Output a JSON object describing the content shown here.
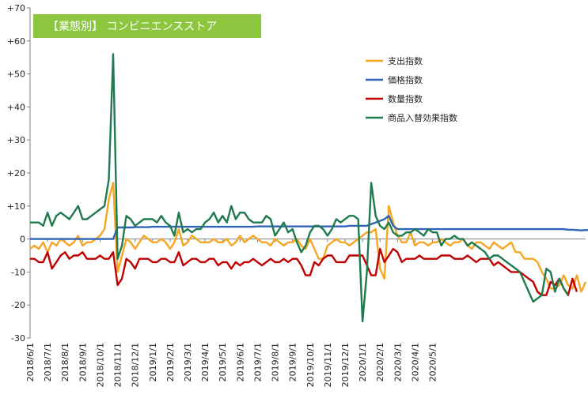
{
  "chart_data": {
    "type": "line",
    "title": "【業態別】 コンビニエンスストア",
    "title_bg": "#8cc63f",
    "ylim": [
      -30,
      70
    ],
    "yticks": [
      "-30",
      "-20",
      "-10",
      "0",
      "+10",
      "+20",
      "+30",
      "+40",
      "+50",
      "+60",
      "+70"
    ],
    "ytick_values": [
      -30,
      -20,
      -10,
      0,
      10,
      20,
      30,
      40,
      50,
      60,
      70
    ],
    "xtick_labels": [
      "2018/6/1",
      "2018/7/1",
      "2018/8/1",
      "2018/9/1",
      "2018/10/1",
      "2018/11/1",
      "2018/12/1",
      "2019/1/1",
      "2019/2/1",
      "2019/3/1",
      "2019/4/1",
      "2019/5/1",
      "2019/6/1",
      "2019/7/1",
      "2019/8/1",
      "2019/9/1",
      "2019/10/1",
      "2019/11/1",
      "2019/12/1",
      "2020/1/1",
      "2020/2/1",
      "2020/3/1",
      "2020/4/1",
      "2020/5/1"
    ],
    "grid": false,
    "legend": "top-right",
    "points_per_month": 4,
    "series": [
      {
        "name": "支出指数",
        "color": "#f5a623",
        "values": [
          -3,
          -2,
          -3,
          -1,
          -4,
          -1,
          -2,
          0,
          -1,
          -2,
          -1,
          1,
          -2,
          -1,
          -1,
          0,
          1,
          3,
          12,
          17,
          -10,
          -5,
          0,
          -1,
          -3,
          -1,
          1,
          0,
          -1,
          -1,
          0,
          -1,
          -3,
          -1,
          3,
          -2,
          -1,
          1,
          0,
          -1,
          -1,
          -1,
          0,
          -1,
          -1,
          0,
          -2,
          -1,
          1,
          -1,
          0,
          1,
          0,
          -1,
          -1,
          -2,
          0,
          -1,
          -2,
          -1,
          -1,
          0,
          -2,
          -3,
          0,
          -3,
          -6,
          -6,
          -2,
          -1,
          0,
          -1,
          -1,
          -2,
          -1,
          0,
          1,
          2,
          2,
          3,
          -9,
          -12,
          10,
          5,
          1,
          -1,
          -1,
          2,
          -2,
          -1,
          -1,
          -2,
          -1,
          -1,
          0,
          -1,
          -2,
          -1,
          -1,
          0,
          -2,
          -3,
          -1,
          -1,
          -2,
          -3,
          -1,
          -2,
          -3,
          -2,
          -1,
          -4,
          -4,
          -6,
          -6,
          -6,
          -7,
          -10,
          -12,
          -15,
          -15,
          -14,
          -11,
          -14,
          -15,
          -11,
          -16,
          -13
        ]
      },
      {
        "name": "価格指数",
        "color": "#2f63b5",
        "values": [
          0,
          0,
          0,
          0,
          0,
          0,
          0,
          0,
          0,
          0,
          0,
          0,
          0,
          0,
          0,
          0,
          0,
          0,
          0,
          0,
          3.5,
          3.5,
          3.5,
          3.5,
          3.6,
          3.6,
          3.6,
          3.6,
          3.7,
          3.7,
          3.7,
          3.7,
          3.7,
          3.7,
          3.7,
          3.7,
          3.7,
          3.7,
          3.7,
          3.7,
          3.7,
          3.7,
          3.7,
          3.7,
          3.7,
          3.7,
          3.7,
          3.7,
          3.7,
          3.7,
          3.7,
          3.7,
          3.8,
          3.8,
          3.8,
          3.8,
          3.8,
          3.8,
          3.8,
          3.8,
          3.8,
          3.8,
          3.8,
          3.8,
          3.8,
          3.8,
          3.8,
          3.8,
          3.8,
          3.8,
          3.8,
          3.8,
          3.8,
          4,
          4,
          4,
          4,
          4,
          4.5,
          5,
          5.5,
          6,
          7,
          4,
          3,
          3,
          3,
          3,
          3,
          3,
          3,
          3,
          3,
          3,
          3,
          3,
          3,
          3,
          3,
          3,
          3,
          3,
          3,
          3,
          3,
          3,
          3,
          3,
          3,
          3,
          3,
          3,
          3,
          3,
          3,
          3,
          3,
          3,
          3,
          3,
          3,
          3,
          3,
          2.8,
          2.8,
          2.7,
          2.6,
          2.7,
          2.7,
          2.8,
          2.6
        ]
      },
      {
        "name": "数量指数",
        "color": "#c00000",
        "values": [
          -6,
          -6,
          -7,
          -7,
          -4,
          -9,
          -7,
          -5,
          -4,
          -6,
          -5,
          -5,
          -4,
          -6,
          -6,
          -6,
          -5,
          -6,
          -6,
          -4,
          -14,
          -12,
          -6,
          -7,
          -9,
          -6,
          -6,
          -6,
          -7,
          -7,
          -6,
          -6,
          -7,
          -7,
          -4,
          -8,
          -7,
          -6,
          -6,
          -7,
          -7,
          -6,
          -6,
          -8,
          -7,
          -7,
          -9,
          -7,
          -8,
          -7,
          -7,
          -6,
          -7,
          -8,
          -7,
          -6,
          -7,
          -7,
          -6,
          -7,
          -6,
          -6,
          -8,
          -11,
          -11,
          -7,
          -8,
          -6,
          -5,
          -5,
          -7,
          -7,
          -7,
          -5,
          -5,
          -5,
          -5,
          -8,
          -11,
          -11,
          -3,
          -7,
          -5,
          -3,
          -4,
          -7,
          -6,
          -6,
          -6,
          -5,
          -6,
          -6,
          -6,
          -6,
          -5,
          -5,
          -5,
          -6,
          -6,
          -6,
          -5,
          -6,
          -7,
          -6,
          -6,
          -6,
          -8,
          -7,
          -8,
          -9,
          -10,
          -10,
          -10,
          -11,
          -12,
          -13,
          -16,
          -17,
          -17,
          -13,
          -14,
          -12,
          -15,
          -17,
          -12,
          -16
        ]
      },
      {
        "name": "商品入替効果指数",
        "color": "#1f7a4d",
        "values": [
          5,
          5,
          5,
          4,
          8,
          4,
          7,
          8,
          7,
          6,
          8,
          10,
          6,
          6,
          7,
          8,
          9,
          10,
          18,
          56,
          -6,
          -2,
          7,
          6,
          4,
          5,
          6,
          6,
          6,
          5,
          7,
          5,
          4,
          1,
          8,
          2,
          3,
          2,
          3,
          3,
          5,
          6,
          8,
          5,
          7,
          5,
          10,
          6,
          8,
          8,
          6,
          5,
          5,
          5,
          7,
          6,
          1,
          3,
          5,
          2,
          3,
          -1,
          -4,
          -2,
          2,
          4,
          4,
          3,
          1,
          3,
          6,
          5,
          6,
          7,
          7,
          6,
          -25,
          -10,
          17,
          7,
          4,
          3,
          5,
          2,
          1,
          1,
          2,
          2,
          3,
          2,
          1,
          3,
          2,
          2,
          -2,
          0,
          0,
          1,
          0,
          0,
          -2,
          -1,
          -2,
          -3,
          -4,
          -6,
          -5,
          -5,
          -6,
          -7,
          -8,
          -9,
          -10,
          -13,
          -16,
          -19,
          -18,
          -17,
          -9,
          -10,
          -16,
          -12,
          -15,
          -17
        ]
      }
    ]
  }
}
